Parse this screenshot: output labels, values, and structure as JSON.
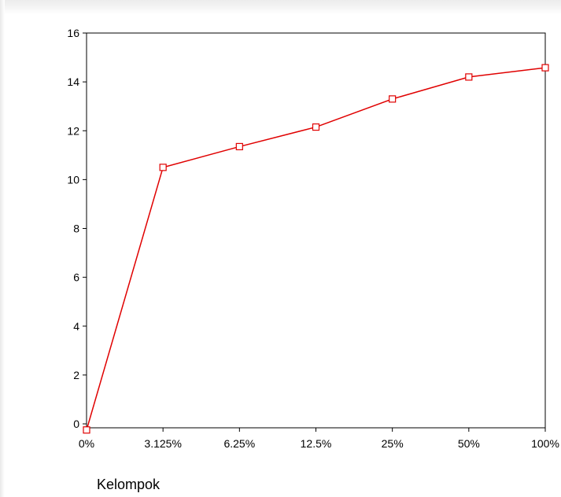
{
  "chart_data": {
    "type": "line",
    "x": [
      "0%",
      "3.125%",
      "6.25%",
      "12.5%",
      "25%",
      "50%",
      "100%"
    ],
    "series": [
      {
        "values": [
          -0.25,
          10.5,
          11.35,
          12.15,
          13.3,
          14.2,
          14.58
        ],
        "color": "#e00000",
        "marker": "square"
      }
    ],
    "xlabel": "Kelompok",
    "ylabel": "",
    "ylim": [
      0,
      16
    ],
    "yticks": [
      0,
      2,
      4,
      6,
      8,
      10,
      12,
      14,
      16
    ],
    "grid": false,
    "legend": "none"
  }
}
